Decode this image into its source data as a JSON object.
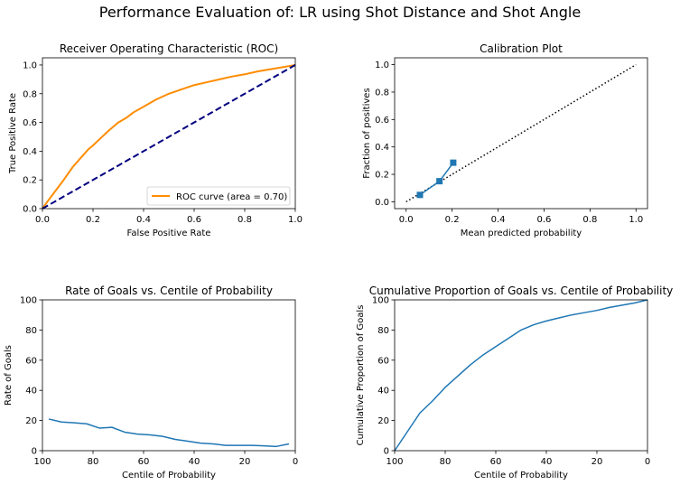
{
  "figure": {
    "suptitle": "Performance Evaluation of: LR using Shot Distance and Shot Angle"
  },
  "chart_data": [
    {
      "id": "roc",
      "type": "line",
      "title": "Receiver Operating Characteristic (ROC)",
      "xlabel": "False Positive Rate",
      "ylabel": "True Positive Rate",
      "xlim": [
        0,
        1
      ],
      "ylim": [
        0,
        1.05
      ],
      "xticks": [
        "0.0",
        "0.2",
        "0.4",
        "0.6",
        "0.8",
        "1.0"
      ],
      "yticks": [
        "0.0",
        "0.2",
        "0.4",
        "0.6",
        "0.8",
        "1.0"
      ],
      "legend": "lower-right",
      "series": [
        {
          "name": "ROC curve (area = 0.70)",
          "color": "#ff8c00",
          "x": [
            0,
            0.02,
            0.05,
            0.08,
            0.1,
            0.12,
            0.15,
            0.18,
            0.2,
            0.23,
            0.26,
            0.28,
            0.3,
            0.33,
            0.36,
            0.4,
            0.45,
            0.5,
            0.55,
            0.6,
            0.65,
            0.7,
            0.75,
            0.8,
            0.85,
            0.9,
            0.95,
            1.0
          ],
          "y": [
            0,
            0.05,
            0.12,
            0.19,
            0.24,
            0.29,
            0.35,
            0.41,
            0.44,
            0.49,
            0.54,
            0.57,
            0.6,
            0.63,
            0.67,
            0.71,
            0.76,
            0.8,
            0.83,
            0.86,
            0.88,
            0.9,
            0.92,
            0.935,
            0.955,
            0.97,
            0.985,
            1.0
          ]
        },
        {
          "color": "#000080",
          "style": "dashed",
          "x": [
            0,
            1
          ],
          "y": [
            0,
            1
          ]
        }
      ]
    },
    {
      "id": "calibration",
      "type": "line",
      "title": "Calibration Plot",
      "xlabel": "Mean predicted probability",
      "ylabel": "Fraction of positives",
      "xlim": [
        -0.05,
        1.05
      ],
      "ylim": [
        -0.05,
        1.05
      ],
      "xticks": [
        "0.0",
        "0.2",
        "0.4",
        "0.6",
        "0.8",
        "1.0"
      ],
      "yticks": [
        "0.0",
        "0.2",
        "0.4",
        "0.6",
        "0.8",
        "1.0"
      ],
      "series": [
        {
          "color": "#000000",
          "style": "dotted",
          "x": [
            0,
            1
          ],
          "y": [
            0,
            1
          ]
        },
        {
          "color": "#1f77b4",
          "marker": "square",
          "x": [
            0.06,
            0.145,
            0.205
          ],
          "y": [
            0.05,
            0.15,
            0.285
          ]
        }
      ]
    },
    {
      "id": "goal-rate",
      "type": "line",
      "title": "Rate of Goals vs. Centile of Probability",
      "xlabel": "Centile of Probability",
      "ylabel": "Rate of Goals",
      "xlim": [
        100,
        0
      ],
      "ylim": [
        0,
        100
      ],
      "xticks": [
        "100",
        "80",
        "60",
        "40",
        "20",
        "0"
      ],
      "yticks": [
        "0",
        "20",
        "40",
        "60",
        "80",
        "100"
      ],
      "series": [
        {
          "color": "#1f77b4",
          "x": [
            97.5,
            92.5,
            87.5,
            82.5,
            77.5,
            72.5,
            67.5,
            62.5,
            57.5,
            52.5,
            47.5,
            42.5,
            37.5,
            32.5,
            27.5,
            22.5,
            17.5,
            12.5,
            7.5,
            2.5
          ],
          "y": [
            21,
            19,
            18.5,
            17.8,
            15,
            15.5,
            12.3,
            11,
            10.5,
            9.5,
            7.5,
            6.3,
            5,
            4.5,
            3.5,
            3.5,
            3.5,
            3.2,
            2.8,
            4.5
          ]
        }
      ]
    },
    {
      "id": "cumulative-goals",
      "type": "line",
      "title": "Cumulative Proportion of Goals vs. Centile of Probability",
      "xlabel": "Centile of Probability",
      "ylabel": "Cumulative Proportion of Goals",
      "xlim": [
        100,
        0
      ],
      "ylim": [
        0,
        100
      ],
      "xticks": [
        "100",
        "80",
        "60",
        "40",
        "20",
        "0"
      ],
      "yticks": [
        "0",
        "20",
        "40",
        "60",
        "80",
        "100"
      ],
      "series": [
        {
          "color": "#1f77b4",
          "x": [
            100,
            95,
            90,
            85,
            80,
            75,
            70,
            65,
            60,
            55,
            50,
            45,
            40,
            35,
            30,
            25,
            20,
            15,
            10,
            5,
            0
          ],
          "y": [
            0,
            12.5,
            25,
            33,
            42,
            49.5,
            57,
            63.5,
            69,
            74.5,
            80,
            83.5,
            86,
            88,
            90,
            91.5,
            93,
            95,
            96.5,
            98,
            100
          ]
        }
      ]
    }
  ]
}
